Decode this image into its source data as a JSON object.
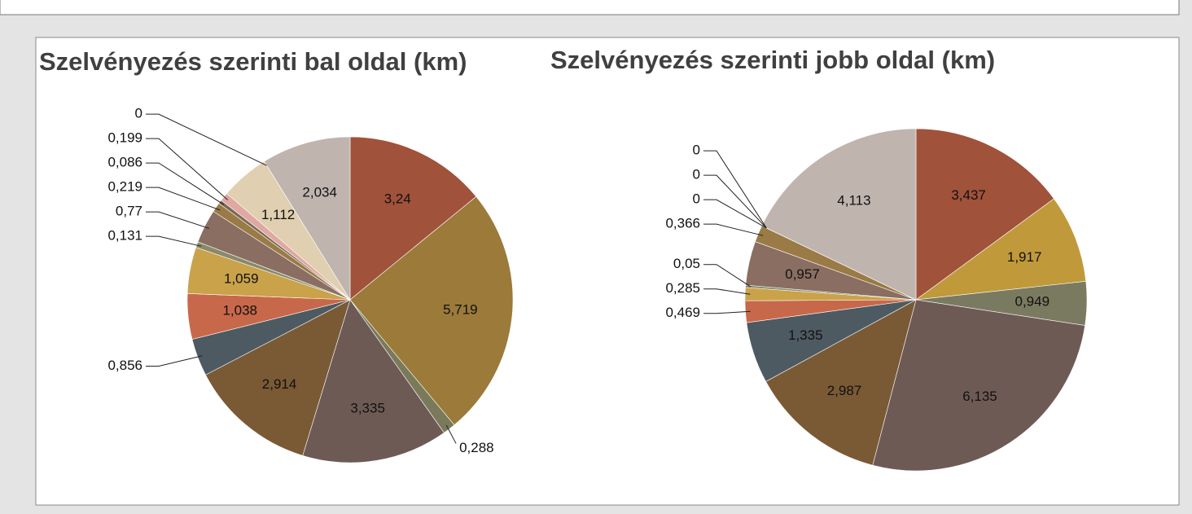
{
  "chart_data": [
    {
      "type": "pie",
      "title": "Szelvényezés szerinti bal oldal (km)",
      "values": [
        3.24,
        5.719,
        0.288,
        3.335,
        2.914,
        0.856,
        1.038,
        1.059,
        0.131,
        0.77,
        0.219,
        0.086,
        0.199,
        1.112,
        0,
        2.034
      ],
      "value_labels": [
        "3,24",
        "5,719",
        "0,288",
        "3,335",
        "2,914",
        "0,856",
        "1,038",
        "1,059",
        "0,131",
        "0,77",
        "0,219",
        "0,086",
        "0,199",
        "1,112",
        "0",
        "2,034"
      ],
      "colors": [
        "#a0523a",
        "#9b7a3a",
        "#7a7a5a",
        "#6e5a55",
        "#7a5a35",
        "#4e5a62",
        "#c8684a",
        "#c9a24a",
        "#8a8a6a",
        "#8a6e62",
        "#9a7a45",
        "#7a6a55",
        "#e0a8a0",
        "#e0cfb0",
        "#c8c0b8",
        "#c0b4ae"
      ]
    },
    {
      "type": "pie",
      "title": "Szelvényezés szerinti jobb oldal (km)",
      "values": [
        3.437,
        1.917,
        0.949,
        6.135,
        2.987,
        1.335,
        0.469,
        0.285,
        0.05,
        0.957,
        0.366,
        0,
        0,
        0,
        4.113
      ],
      "value_labels": [
        "3,437",
        "1,917",
        "0,949",
        "6,135",
        "2,987",
        "1,335",
        "0,469",
        "0,285",
        "0,05",
        "0,957",
        "0,366",
        "0",
        "0",
        "0",
        "4,113"
      ],
      "colors": [
        "#a0523a",
        "#c09a3a",
        "#7a7a60",
        "#6e5a55",
        "#7a5a35",
        "#4e5a62",
        "#c8684a",
        "#c9a24a",
        "#8a8a6a",
        "#8a6e62",
        "#9a7a45",
        "#7a6a55",
        "#e0a8a0",
        "#e0cfb0",
        "#c0b4ae"
      ]
    }
  ]
}
